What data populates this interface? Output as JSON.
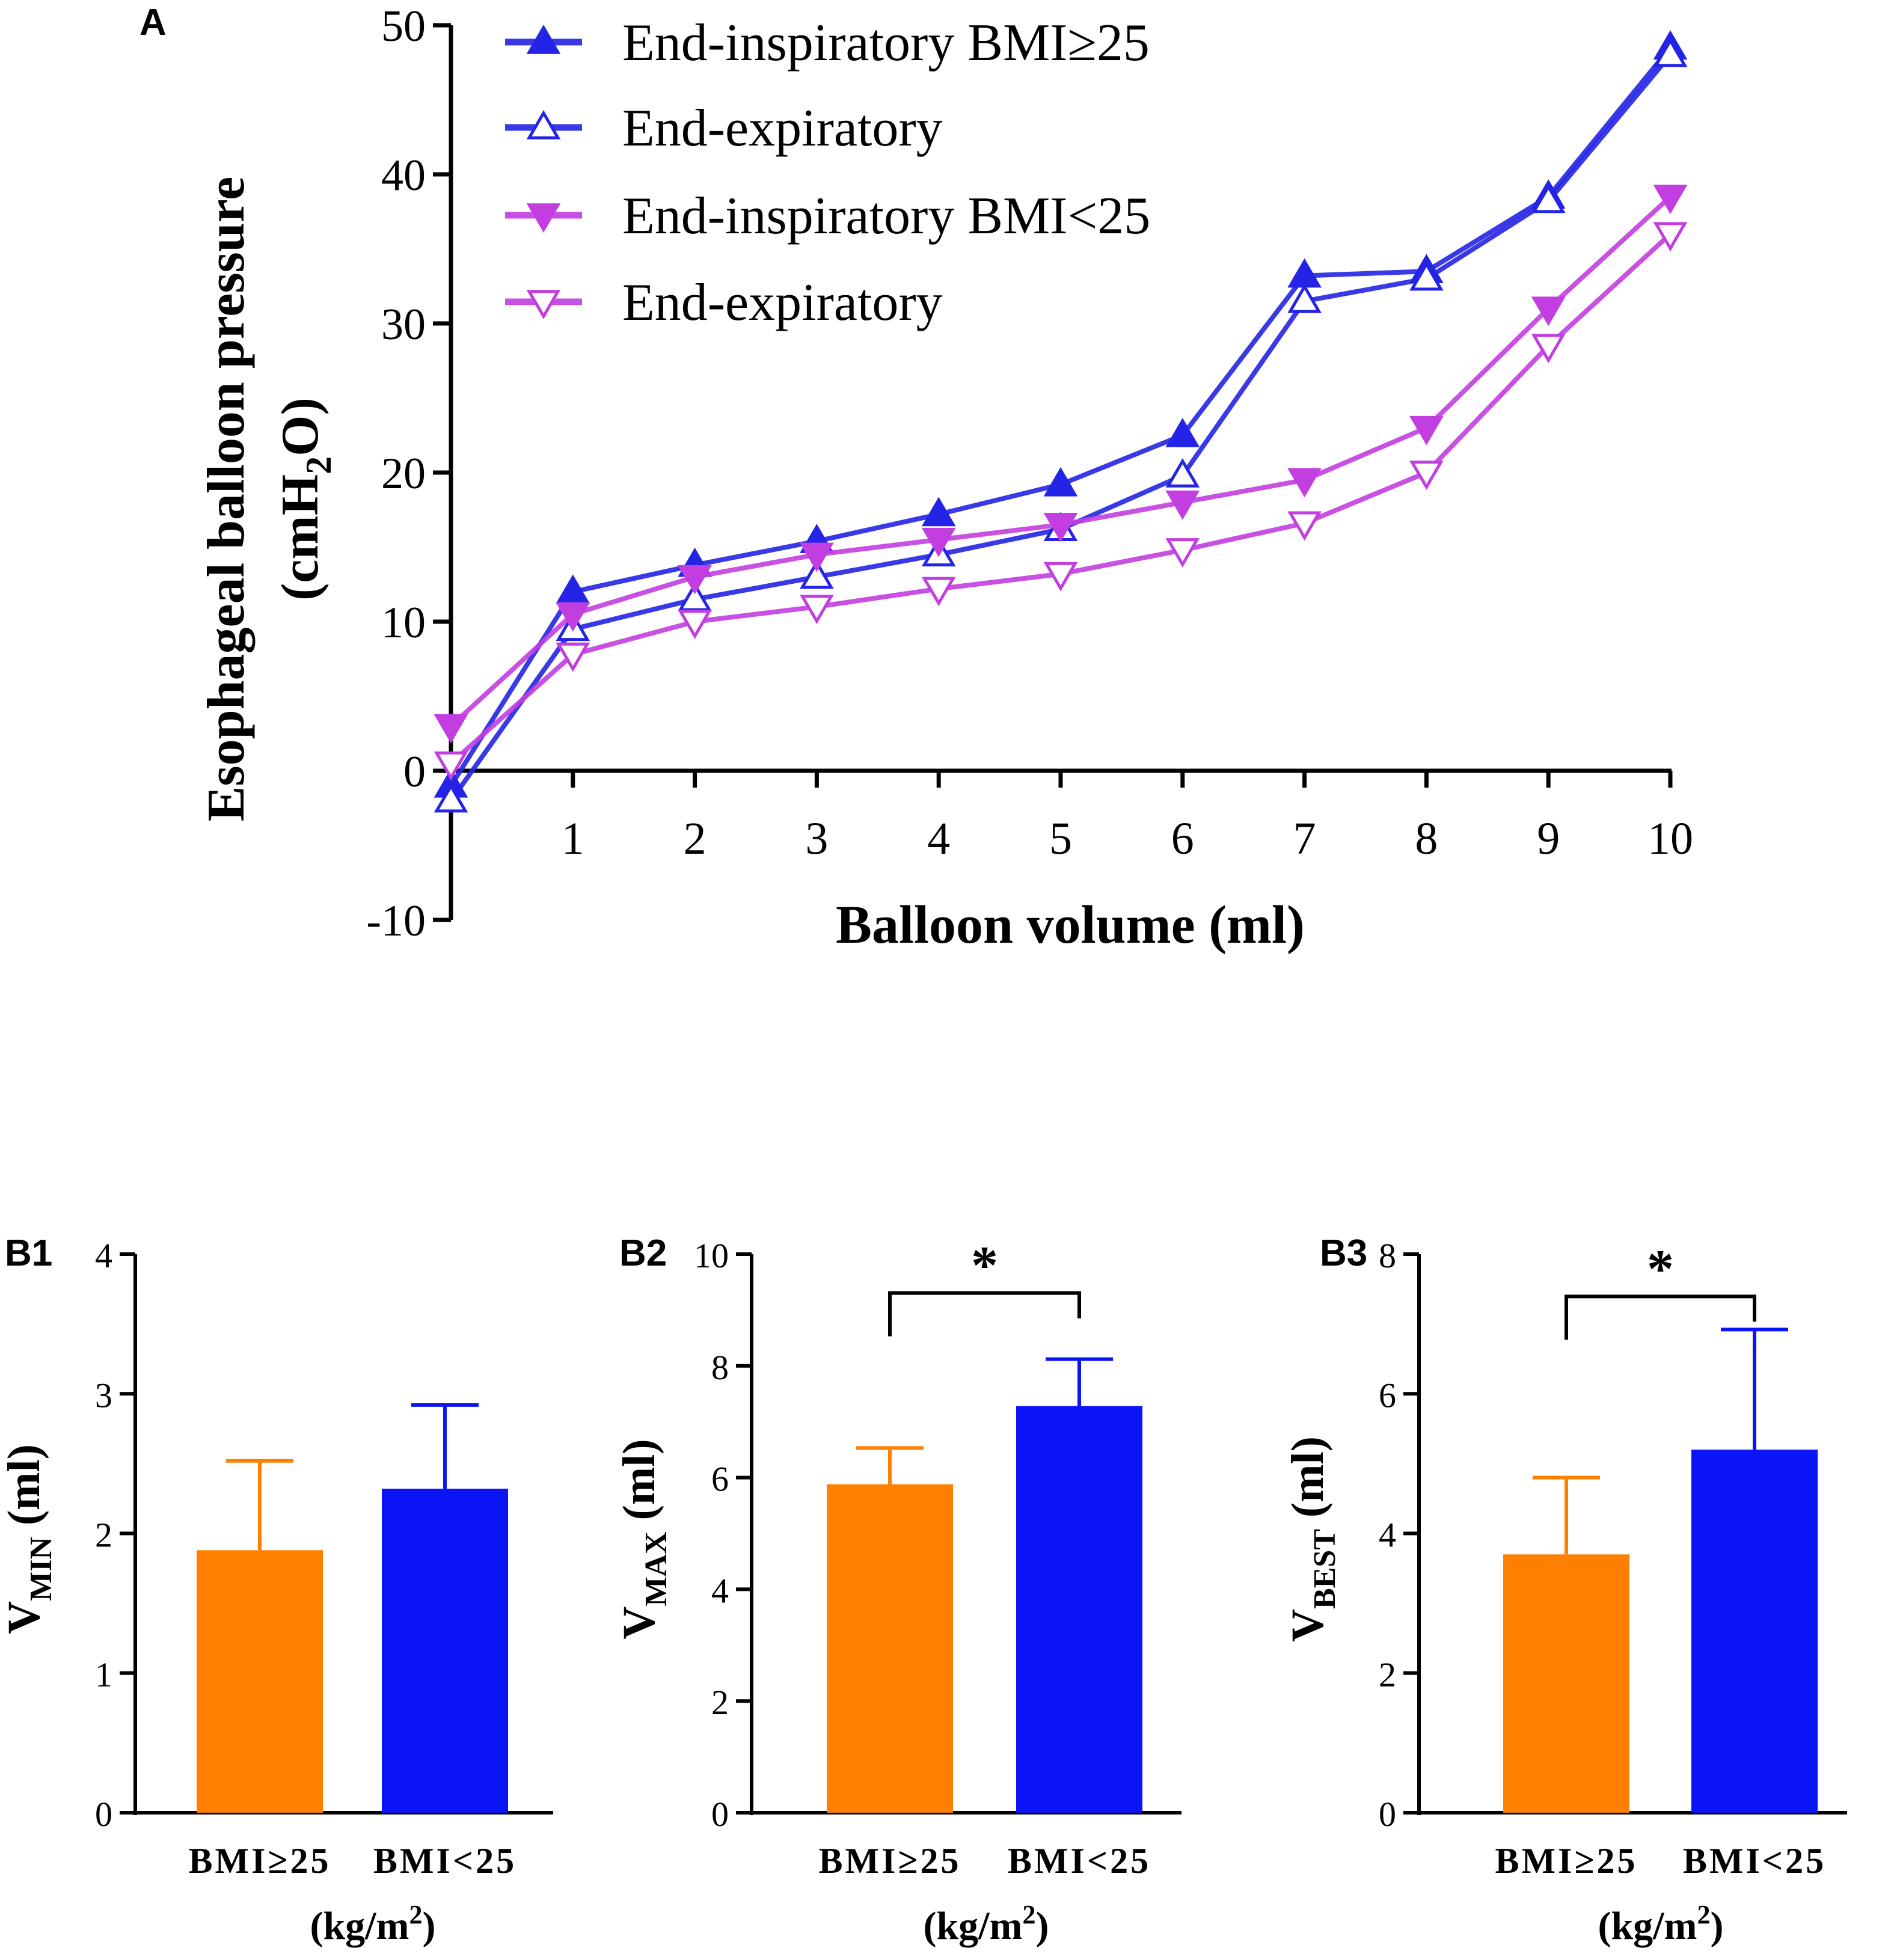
{
  "colors": {
    "blue": "#2424e6",
    "magenta": "#c23ee0",
    "orange": "#ff8000",
    "barBlue": "#0a14f5",
    "axis": "#000000"
  },
  "chart_data": [
    {
      "panel": "A",
      "type": "line",
      "title": "",
      "xlabel": "Balloon  volume (ml)",
      "ylabel_line1": "Esophageal balloon pressure",
      "ylabel_line2_prefix": "(cmH",
      "ylabel_line2_sub": "2",
      "ylabel_line2_suffix": "O)",
      "x": [
        0,
        1,
        2,
        3,
        4,
        5,
        6,
        7,
        8,
        9,
        10
      ],
      "x_tick_labels": [
        "1",
        "2",
        "3",
        "4",
        "5",
        "6",
        "7",
        "8",
        "9",
        "10"
      ],
      "y_ticks": [
        "-10",
        "0",
        "10",
        "20",
        "30",
        "40",
        "50"
      ],
      "ylim": [
        -10,
        50
      ],
      "legend_position": "top-left",
      "series": [
        {
          "name": "End-inspiratory BMI≥25",
          "color": "blue",
          "marker": "triangle-up-filled",
          "values": [
            -1.0,
            12.0,
            13.8,
            15.4,
            17.2,
            19.2,
            22.5,
            33.2,
            33.5,
            38.5,
            48.5
          ]
        },
        {
          "name": "End-expiratory",
          "color": "blue",
          "marker": "triangle-up-open",
          "values": [
            -2.0,
            9.5,
            11.5,
            13.0,
            14.5,
            16.2,
            19.8,
            31.5,
            33.0,
            38.2,
            48.0
          ]
        },
        {
          "name": "End-inspiratory BMI<25",
          "color": "magenta",
          "marker": "triangle-down-filled",
          "values": [
            3.0,
            10.5,
            13.0,
            14.5,
            15.5,
            16.5,
            18.0,
            19.5,
            23.0,
            31.0,
            38.5
          ]
        },
        {
          "name": "End-expiratory",
          "color": "magenta",
          "marker": "triangle-down-open",
          "values": [
            0.5,
            7.8,
            10.0,
            11.0,
            12.2,
            13.2,
            14.8,
            16.6,
            20.0,
            28.5,
            36.0
          ]
        }
      ]
    },
    {
      "panel": "B1",
      "type": "bar",
      "ylabel_main": "V",
      "ylabel_sub": "MIN",
      "ylabel_suffix": " (ml)",
      "xlabel_prefix": "(kg/m",
      "xlabel_sup": "2",
      "xlabel_suffix": ")",
      "categories": [
        "BMI≥25",
        "BMI<25"
      ],
      "values": [
        1.88,
        2.32
      ],
      "errors": [
        0.64,
        0.6
      ],
      "ylim": [
        0,
        4
      ],
      "y_ticks": [
        "0",
        "1",
        "2",
        "3",
        "4"
      ],
      "significance": ""
    },
    {
      "panel": "B2",
      "type": "bar",
      "ylabel_main": "V",
      "ylabel_sub": "MAX",
      "ylabel_suffix": " (ml)",
      "xlabel_prefix": "(kg/m",
      "xlabel_sup": "2",
      "xlabel_suffix": ")",
      "categories": [
        "BMI≥25",
        "BMI<25"
      ],
      "values": [
        5.88,
        7.28
      ],
      "errors": [
        0.65,
        0.84
      ],
      "ylim": [
        0,
        10
      ],
      "y_ticks": [
        "0",
        "2",
        "4",
        "6",
        "8",
        "10"
      ],
      "significance": "*"
    },
    {
      "panel": "B3",
      "type": "bar",
      "ylabel_main": "V",
      "ylabel_sub": "BEST",
      "ylabel_suffix": " (ml)",
      "xlabel_prefix": "(kg/m",
      "xlabel_sup": "2",
      "xlabel_suffix": ")",
      "categories": [
        "BMI≥25",
        "BMI<25"
      ],
      "values": [
        3.7,
        5.2
      ],
      "errors": [
        1.1,
        1.72
      ],
      "ylim": [
        0,
        8
      ],
      "y_ticks": [
        "0",
        "2",
        "4",
        "6",
        "8"
      ],
      "significance": "*"
    }
  ]
}
